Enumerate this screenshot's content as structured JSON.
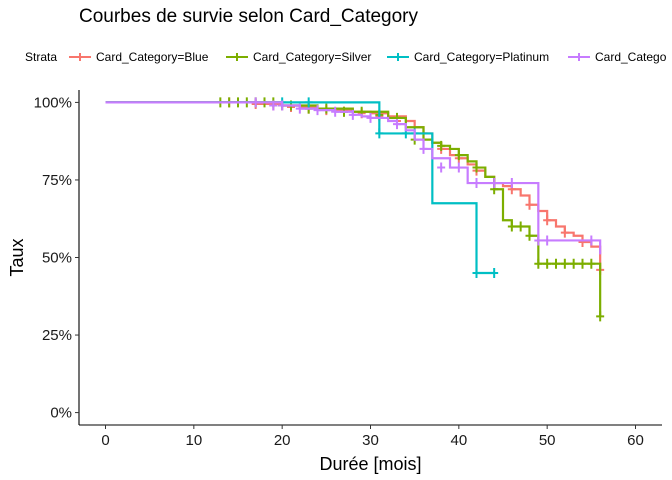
{
  "chart_data": {
    "type": "line",
    "title": "Courbes de survie selon Card_Category",
    "xlabel": "Durée [mois]",
    "ylabel": "Taux",
    "xlim": [
      -3,
      63
    ],
    "ylim": [
      -0.04,
      1.04
    ],
    "x_ticks": [
      0,
      10,
      20,
      30,
      40,
      50,
      60
    ],
    "y_ticks": [
      0,
      0.25,
      0.5,
      0.75,
      1.0
    ],
    "y_tick_labels": [
      "0%",
      "25%",
      "50%",
      "75%",
      "100%"
    ],
    "grid": false,
    "legend": {
      "position": "top",
      "title": "Strata",
      "labels": [
        "Card_Category=Blue",
        "Card_Category=Silver",
        "Card_Category=Platinum",
        "Card_Catego"
      ]
    },
    "series": [
      {
        "name": "Card_Category=Blue",
        "color": "#F8766D",
        "x": [
          0,
          17,
          20,
          22,
          24,
          26,
          28,
          30,
          32,
          34,
          35,
          36,
          37,
          38,
          39,
          40,
          41,
          42,
          43,
          44,
          45,
          46,
          47,
          48,
          49,
          50,
          51,
          52,
          53,
          54,
          55,
          56
        ],
        "y": [
          1.0,
          0.995,
          0.99,
          0.985,
          0.98,
          0.975,
          0.97,
          0.965,
          0.955,
          0.94,
          0.92,
          0.9,
          0.87,
          0.85,
          0.83,
          0.82,
          0.8,
          0.78,
          0.76,
          0.74,
          0.73,
          0.72,
          0.7,
          0.67,
          0.65,
          0.62,
          0.6,
          0.58,
          0.57,
          0.55,
          0.535,
          0.46
        ],
        "censored_x": [
          14,
          17,
          19,
          21,
          23,
          25,
          27,
          29,
          31,
          33,
          36,
          38,
          40,
          42,
          44,
          46,
          48,
          50,
          52,
          54,
          56
        ],
        "censored_y": [
          1.0,
          0.995,
          0.99,
          0.985,
          0.98,
          0.975,
          0.97,
          0.965,
          0.955,
          0.94,
          0.9,
          0.85,
          0.82,
          0.78,
          0.74,
          0.72,
          0.67,
          0.62,
          0.58,
          0.55,
          0.46
        ]
      },
      {
        "name": "Card_Category=Silver",
        "color": "#7CAE00",
        "x": [
          0,
          20,
          24,
          28,
          32,
          34,
          36,
          37,
          38,
          39,
          40,
          41,
          42,
          43,
          44,
          45,
          46,
          48,
          49,
          56
        ],
        "y": [
          1.0,
          0.99,
          0.98,
          0.97,
          0.95,
          0.92,
          0.88,
          0.87,
          0.86,
          0.85,
          0.83,
          0.81,
          0.79,
          0.76,
          0.72,
          0.62,
          0.6,
          0.57,
          0.48,
          0.31
        ],
        "censored_x": [
          13,
          14,
          15,
          16,
          17,
          18,
          19,
          20,
          21,
          23,
          25,
          27,
          29,
          31,
          33,
          35,
          38,
          40,
          42,
          44,
          46,
          47,
          48,
          49,
          50,
          51,
          52,
          53,
          54,
          55,
          56
        ],
        "censored_y": [
          1.0,
          1.0,
          1.0,
          1.0,
          1.0,
          1.0,
          1.0,
          0.99,
          0.99,
          0.98,
          0.98,
          0.97,
          0.97,
          0.96,
          0.95,
          0.88,
          0.86,
          0.83,
          0.79,
          0.72,
          0.6,
          0.6,
          0.57,
          0.48,
          0.48,
          0.48,
          0.48,
          0.48,
          0.48,
          0.48,
          0.31
        ]
      },
      {
        "name": "Card_Category=Platinum",
        "color": "#00BFC4",
        "x": [
          0,
          31,
          37,
          42,
          44
        ],
        "y": [
          1.0,
          0.9,
          0.675,
          0.45,
          0.45
        ],
        "censored_x": [
          20,
          23,
          31,
          34,
          35,
          42,
          44
        ],
        "censored_y": [
          1.0,
          1.0,
          0.9,
          0.9,
          0.9,
          0.45,
          0.45
        ]
      },
      {
        "name": "Card_Catego",
        "color": "#C77CFF",
        "x": [
          0,
          20,
          22,
          24,
          26,
          28,
          29,
          30,
          32,
          33,
          34,
          35,
          36,
          37,
          39,
          41,
          42,
          48,
          49,
          56
        ],
        "y": [
          1.0,
          0.99,
          0.98,
          0.975,
          0.97,
          0.96,
          0.955,
          0.95,
          0.94,
          0.93,
          0.91,
          0.88,
          0.85,
          0.82,
          0.79,
          0.74,
          0.74,
          0.74,
          0.555,
          0.51
        ],
        "censored_x": [
          17,
          19,
          20,
          22,
          24,
          26,
          28,
          30,
          33,
          36,
          38,
          40,
          42,
          44,
          46,
          49,
          50,
          55
        ],
        "censored_y": [
          1.0,
          0.99,
          0.99,
          0.98,
          0.975,
          0.97,
          0.96,
          0.95,
          0.93,
          0.85,
          0.79,
          0.79,
          0.74,
          0.74,
          0.74,
          0.555,
          0.555,
          0.555
        ]
      }
    ]
  }
}
